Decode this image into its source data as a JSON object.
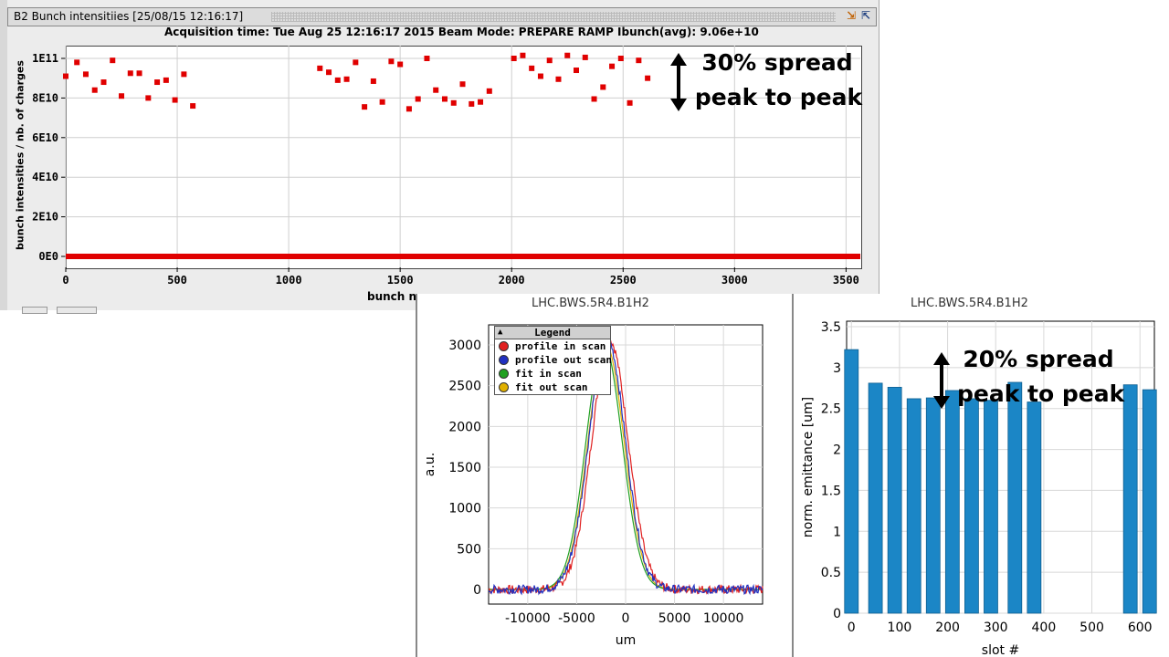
{
  "window": {
    "title": "B2 Bunch intensitiies  [25/08/15 12:16:17]",
    "acquisition_line": "Acquisition time: Tue Aug 25 12:16:17 2015   Beam Mode: PREPARE RAMP   Ibunch(avg): 9.06e+10"
  },
  "annotations": {
    "top_line1": "30% spread",
    "top_line2": "peak to peak",
    "bottom_line1": "20% spread",
    "bottom_line2": "peak to peak"
  },
  "colors": {
    "bunch_points": "#e00000",
    "bars": "#1b86c6",
    "profile_in": "#e02020",
    "profile_out": "#2030c0",
    "fit_in": "#20a020",
    "fit_out": "#e0b000"
  },
  "chart_data": [
    {
      "type": "scatter",
      "ylabel": "bunch intensities / nb. of charges",
      "xlabel": "bunch n",
      "xlim": [
        0,
        3564
      ],
      "ylim": [
        0,
        105000000000.0
      ],
      "x_ticks": [
        "0",
        "500",
        "1000",
        "1500",
        "2000",
        "2500",
        "3000",
        "3500"
      ],
      "y_ticks": [
        "0E0",
        "2E10",
        "4E10",
        "6E10",
        "8E10",
        "1E11"
      ],
      "grid": true,
      "points": [
        [
          0,
          91000000000.0
        ],
        [
          50,
          98000000000.0
        ],
        [
          90,
          92000000000.0
        ],
        [
          130,
          84000000000.0
        ],
        [
          170,
          88000000000.0
        ],
        [
          210,
          99000000000.0
        ],
        [
          250,
          81000000000.0
        ],
        [
          290,
          92500000000.0
        ],
        [
          330,
          92500000000.0
        ],
        [
          370,
          80000000000.0
        ],
        [
          410,
          88000000000.0
        ],
        [
          450,
          89000000000.0
        ],
        [
          490,
          79000000000.0
        ],
        [
          530,
          92000000000.0
        ],
        [
          570,
          76000000000.0
        ],
        [
          1140,
          95000000000.0
        ],
        [
          1180,
          93000000000.0
        ],
        [
          1220,
          89000000000.0
        ],
        [
          1260,
          89500000000.0
        ],
        [
          1300,
          98000000000.0
        ],
        [
          1340,
          75500000000.0
        ],
        [
          1380,
          88500000000.0
        ],
        [
          1420,
          78000000000.0
        ],
        [
          1460,
          98500000000.0
        ],
        [
          1500,
          97000000000.0
        ],
        [
          1540,
          74500000000.0
        ],
        [
          1580,
          79500000000.0
        ],
        [
          1620,
          100000000000.0
        ],
        [
          1660,
          84000000000.0
        ],
        [
          1700,
          79500000000.0
        ],
        [
          1740,
          77500000000.0
        ],
        [
          1780,
          87000000000.0
        ],
        [
          1820,
          77000000000.0
        ],
        [
          1860,
          78000000000.0
        ],
        [
          1900,
          83500000000.0
        ],
        [
          2010,
          100000000000.0
        ],
        [
          2050,
          101500000000.0
        ],
        [
          2090,
          95000000000.0
        ],
        [
          2130,
          91000000000.0
        ],
        [
          2170,
          99000000000.0
        ],
        [
          2210,
          89500000000.0
        ],
        [
          2250,
          101500000000.0
        ],
        [
          2290,
          94000000000.0
        ],
        [
          2330,
          100500000000.0
        ],
        [
          2370,
          79500000000.0
        ],
        [
          2410,
          85500000000.0
        ],
        [
          2450,
          96000000000.0
        ],
        [
          2490,
          100000000000.0
        ],
        [
          2530,
          77500000000.0
        ],
        [
          2570,
          99000000000.0
        ],
        [
          2610,
          90000000000.0
        ]
      ],
      "baseline_value": 0
    },
    {
      "type": "line",
      "title": "LHC.BWS.5R4.B1H2",
      "xlabel": "um",
      "ylabel": "a.u.",
      "xlim": [
        -14000,
        14000
      ],
      "ylim": [
        -120,
        3250
      ],
      "x_ticks": [
        "-10000",
        "-5000",
        "0",
        "5000",
        "10000"
      ],
      "y_ticks": [
        "0",
        "500",
        "1000",
        "1500",
        "2000",
        "2500",
        "3000"
      ],
      "grid": true,
      "legend": {
        "title": "Legend",
        "placement": "top-left",
        "entries": [
          "profile in scan",
          "profile out scan",
          "fit in scan",
          "fit out scan"
        ]
      },
      "series": [
        {
          "name": "profile in scan",
          "center": -1600,
          "sigma": 1850,
          "amplitude": 3050,
          "noise": 45
        },
        {
          "name": "profile out scan",
          "center": -1900,
          "sigma": 1850,
          "amplitude": 3080,
          "noise": 45
        },
        {
          "name": "fit in scan",
          "center": -2200,
          "sigma": 1850,
          "amplitude": 3000,
          "noise": 0
        },
        {
          "name": "fit out scan",
          "center": -2000,
          "sigma": 1850,
          "amplitude": 3000,
          "noise": 0
        }
      ]
    },
    {
      "type": "bar",
      "title": "LHC.BWS.5R4.B1H2",
      "xlabel": "slot #",
      "ylabel": "norm. emittance [um]",
      "xlim": [
        -10,
        630
      ],
      "ylim": [
        0,
        3.5
      ],
      "x_ticks": [
        "0",
        "100",
        "200",
        "300",
        "400",
        "500",
        "600"
      ],
      "y_ticks": [
        "0",
        "0.5",
        "1",
        "1.5",
        "2",
        "2.5",
        "3",
        "3.5"
      ],
      "grid": true,
      "bars": [
        {
          "x": 0,
          "value": 3.22
        },
        {
          "x": 50,
          "value": 2.81
        },
        {
          "x": 90,
          "value": 2.76
        },
        {
          "x": 130,
          "value": 2.62
        },
        {
          "x": 170,
          "value": 2.63
        },
        {
          "x": 210,
          "value": 2.72
        },
        {
          "x": 250,
          "value": 2.62
        },
        {
          "x": 290,
          "value": 2.6
        },
        {
          "x": 340,
          "value": 2.82
        },
        {
          "x": 380,
          "value": 2.58
        },
        {
          "x": 580,
          "value": 2.79
        },
        {
          "x": 620,
          "value": 2.73
        }
      ]
    }
  ]
}
